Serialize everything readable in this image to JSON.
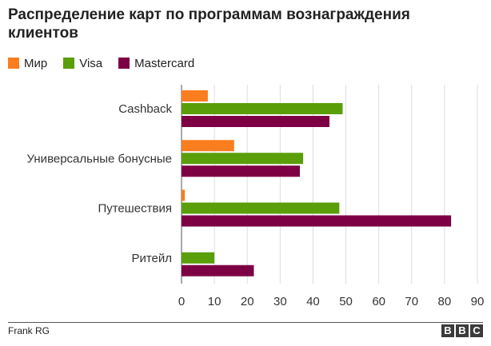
{
  "title": "Распределение карт по программам вознаграждения клиентов",
  "source": "Frank RG",
  "logo": [
    "B",
    "B",
    "C"
  ],
  "colors": {
    "Мир": "#fa7d1e",
    "Visa": "#5a9e0a",
    "Mastercard": "#7d0044",
    "grid": "#dddddd",
    "axis": "#555555"
  },
  "chart_data": {
    "type": "bar",
    "orientation": "horizontal",
    "categories": [
      "Cashback",
      "Универсальные бонусные",
      "Путешествия",
      "Ритейл"
    ],
    "series": [
      {
        "name": "Мир",
        "values": [
          8,
          16,
          1,
          0
        ]
      },
      {
        "name": "Visa",
        "values": [
          49,
          37,
          48,
          10
        ]
      },
      {
        "name": "Mastercard",
        "values": [
          45,
          36,
          82,
          22
        ]
      }
    ],
    "xlim": [
      0,
      90
    ],
    "xticks": [
      "0",
      "10",
      "20",
      "30",
      "40",
      "50",
      "60",
      "70",
      "80",
      "90"
    ],
    "grid": true,
    "legend": "top-left",
    "xlabel": "",
    "ylabel": ""
  }
}
